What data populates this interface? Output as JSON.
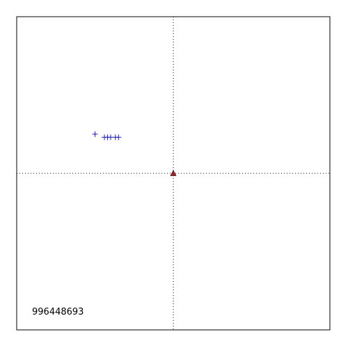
{
  "chart_data": {
    "type": "scatter",
    "title": "",
    "xlabel": "",
    "ylabel": "",
    "xlim": [
      -1,
      1
    ],
    "ylim": [
      -1,
      1
    ],
    "grid": false,
    "crosshair_at_origin": true,
    "annotation": "996448693",
    "series": [
      {
        "marker": "plus",
        "color": "#1f1fb4",
        "points": [
          {
            "x": -0.5,
            "y": 0.25
          },
          {
            "x": -0.44,
            "y": 0.23
          },
          {
            "x": -0.42,
            "y": 0.23
          },
          {
            "x": -0.4,
            "y": 0.23
          },
          {
            "x": -0.37,
            "y": 0.23
          },
          {
            "x": -0.35,
            "y": 0.23
          }
        ]
      },
      {
        "marker": "triangle",
        "color": "#b21f1f",
        "points": [
          {
            "x": 0,
            "y": 0
          }
        ]
      }
    ]
  }
}
